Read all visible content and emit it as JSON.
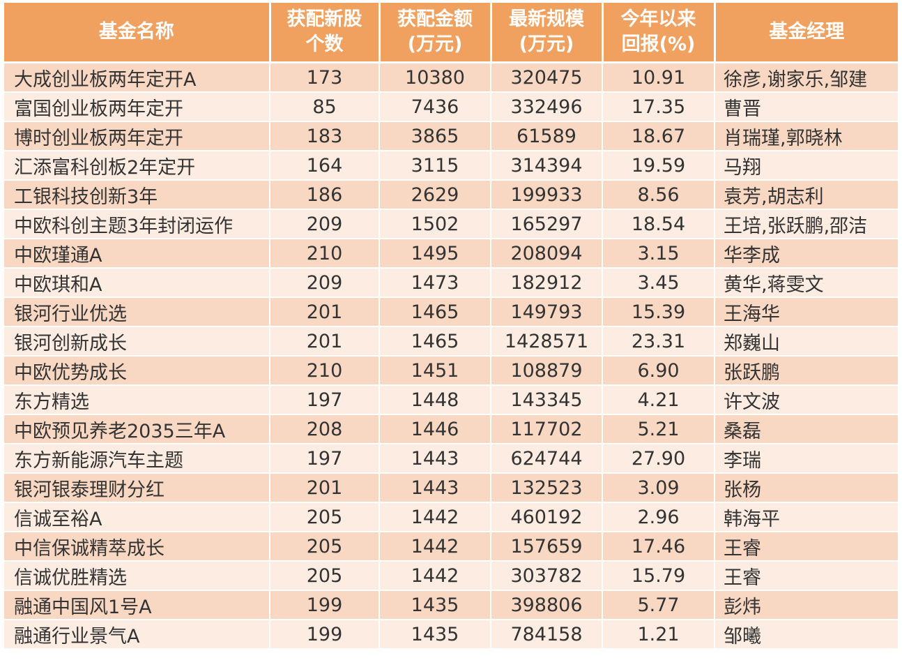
{
  "header": {
    "name": "基金名称",
    "stocks": [
      "获配新股",
      "个数"
    ],
    "amount": [
      "获配金额",
      "(万元)"
    ],
    "scale": [
      "最新规模",
      "(万元)"
    ],
    "return": [
      "今年以来",
      "回报(%)"
    ],
    "manager": "基金经理"
  },
  "rows": [
    {
      "name": "大成创业板两年定开A",
      "stocks": "173",
      "amount": "10380",
      "scale": "320475",
      "ret": "10.91",
      "manager": "徐彦,谢家乐,邹建"
    },
    {
      "name": "富国创业板两年定开",
      "stocks": "85",
      "amount": "7436",
      "scale": "332496",
      "ret": "17.35",
      "manager": "曹晋"
    },
    {
      "name": "博时创业板两年定开",
      "stocks": "183",
      "amount": "3865",
      "scale": "61589",
      "ret": "18.67",
      "manager": "肖瑞瑾,郭晓林"
    },
    {
      "name": "汇添富科创板2年定开",
      "stocks": "164",
      "amount": "3115",
      "scale": "314394",
      "ret": "19.59",
      "manager": "马翔"
    },
    {
      "name": "工银科技创新3年",
      "stocks": "186",
      "amount": "2629",
      "scale": "199933",
      "ret": "8.56",
      "manager": "袁芳,胡志利"
    },
    {
      "name": "中欧科创主题3年封闭运作",
      "stocks": "209",
      "amount": "1502",
      "scale": "165297",
      "ret": "18.54",
      "manager": "王培,张跃鹏,邵洁"
    },
    {
      "name": "中欧瑾通A",
      "stocks": "210",
      "amount": "1495",
      "scale": "208094",
      "ret": "3.15",
      "manager": "华李成"
    },
    {
      "name": "中欧琪和A",
      "stocks": "209",
      "amount": "1473",
      "scale": "182912",
      "ret": "3.45",
      "manager": "黄华,蒋雯文"
    },
    {
      "name": "银河行业优选",
      "stocks": "201",
      "amount": "1465",
      "scale": "149793",
      "ret": "15.39",
      "manager": "王海华"
    },
    {
      "name": "银河创新成长",
      "stocks": "201",
      "amount": "1465",
      "scale": "1428571",
      "ret": "23.31",
      "manager": "郑巍山"
    },
    {
      "name": "中欧优势成长",
      "stocks": "210",
      "amount": "1451",
      "scale": "108879",
      "ret": "6.90",
      "manager": "张跃鹏"
    },
    {
      "name": "东方精选",
      "stocks": "197",
      "amount": "1448",
      "scale": "143345",
      "ret": "4.21",
      "manager": "许文波"
    },
    {
      "name": "中欧预见养老2035三年A",
      "stocks": "208",
      "amount": "1446",
      "scale": "117702",
      "ret": "5.21",
      "manager": "桑磊"
    },
    {
      "name": "东方新能源汽车主题",
      "stocks": "197",
      "amount": "1443",
      "scale": "624744",
      "ret": "27.90",
      "manager": "李瑞"
    },
    {
      "name": "银河银泰理财分红",
      "stocks": "201",
      "amount": "1443",
      "scale": "132523",
      "ret": "3.09",
      "manager": "张杨"
    },
    {
      "name": "信诚至裕A",
      "stocks": "205",
      "amount": "1442",
      "scale": "460192",
      "ret": "2.96",
      "manager": "韩海平"
    },
    {
      "name": "中信保诚精萃成长",
      "stocks": "205",
      "amount": "1442",
      "scale": "157659",
      "ret": "17.46",
      "manager": "王睿"
    },
    {
      "name": "信诚优胜精选",
      "stocks": "205",
      "amount": "1442",
      "scale": "303782",
      "ret": "15.79",
      "manager": "王睿"
    },
    {
      "name": "融通中国风1号A",
      "stocks": "199",
      "amount": "1435",
      "scale": "398806",
      "ret": "5.77",
      "manager": "彭炜"
    },
    {
      "name": "融通行业景气A",
      "stocks": "199",
      "amount": "1435",
      "scale": "784158",
      "ret": "1.21",
      "manager": "邹曦"
    }
  ]
}
